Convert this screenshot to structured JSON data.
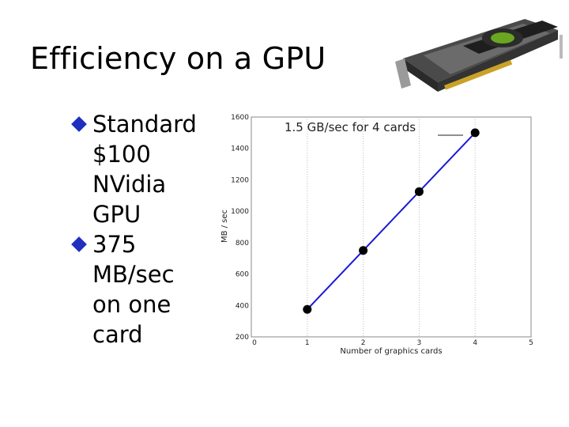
{
  "slide": {
    "title": "Efficiency on a GPU",
    "bullets": [
      "Standard $100 NVidia GPU",
      "375 MB/sec on one card"
    ]
  },
  "image": {
    "icon": "nvidia-graphics-card-icon"
  },
  "colors": {
    "line": "#1a1ad6",
    "marker": "#000000",
    "bullet": "#1f2fbf"
  },
  "chart_data": {
    "type": "line",
    "title": "",
    "annotation": "1.5 GB/sec for 4 cards",
    "xlabel": "Number of graphics cards",
    "ylabel": "MB / sec",
    "xlim": [
      0,
      5
    ],
    "ylim": [
      200,
      1600
    ],
    "xticks": [
      0,
      1,
      2,
      3,
      4,
      5
    ],
    "yticks": [
      200,
      400,
      600,
      800,
      1000,
      1200,
      1400,
      1600
    ],
    "grid": true,
    "series": [
      {
        "x": [
          1,
          2,
          3,
          4
        ],
        "y": [
          375,
          750,
          1125,
          1500
        ]
      }
    ]
  }
}
